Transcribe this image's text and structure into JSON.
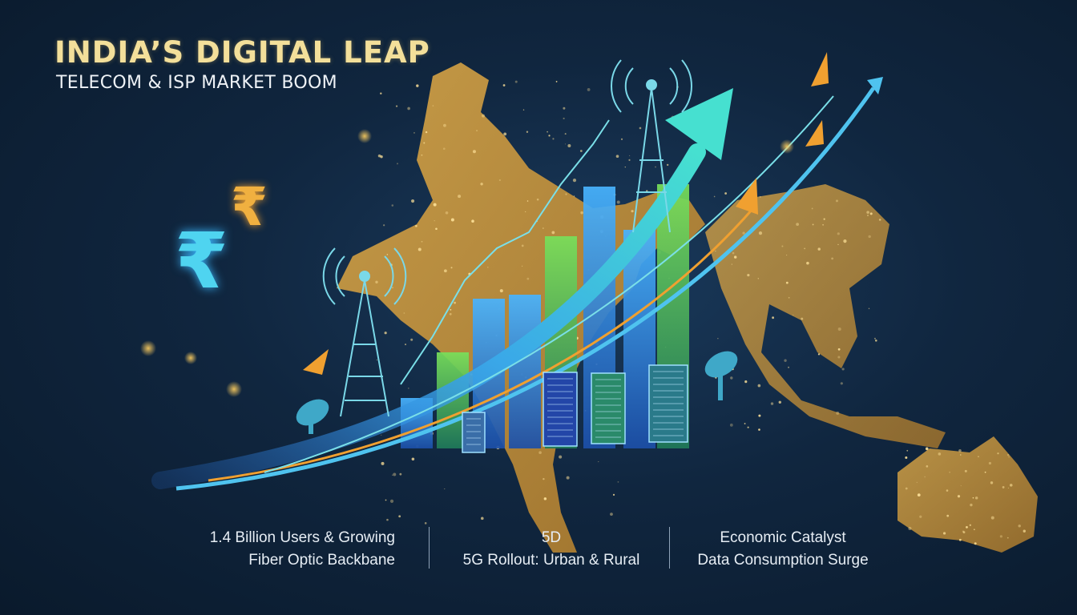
{
  "header": {
    "title": "INDIA’S DIGITAL LEAP",
    "subtitle": "TELECOM & ISP MARKET BOOM"
  },
  "stats": [
    {
      "line1": "1.4 Billion Users & Growing",
      "line2": "Fiber Optic Backbane"
    },
    {
      "line1": "5D",
      "line2": "5G Rollout: Urban & Rural"
    },
    {
      "line1": "Economic Catalyst",
      "line2": "Data Consumption Surge"
    }
  ],
  "icons": {
    "rupee_large": "₹",
    "rupee_small": "₹"
  },
  "colors": {
    "background": "#10263f",
    "map_gold": "#c9963a",
    "title_gold": "#f3df9a",
    "arrow_cyan": "#3fd3d8",
    "bar_blue": "#2f8fe0",
    "bar_green": "#5cc84a",
    "accent_orange": "#f0a030"
  }
}
